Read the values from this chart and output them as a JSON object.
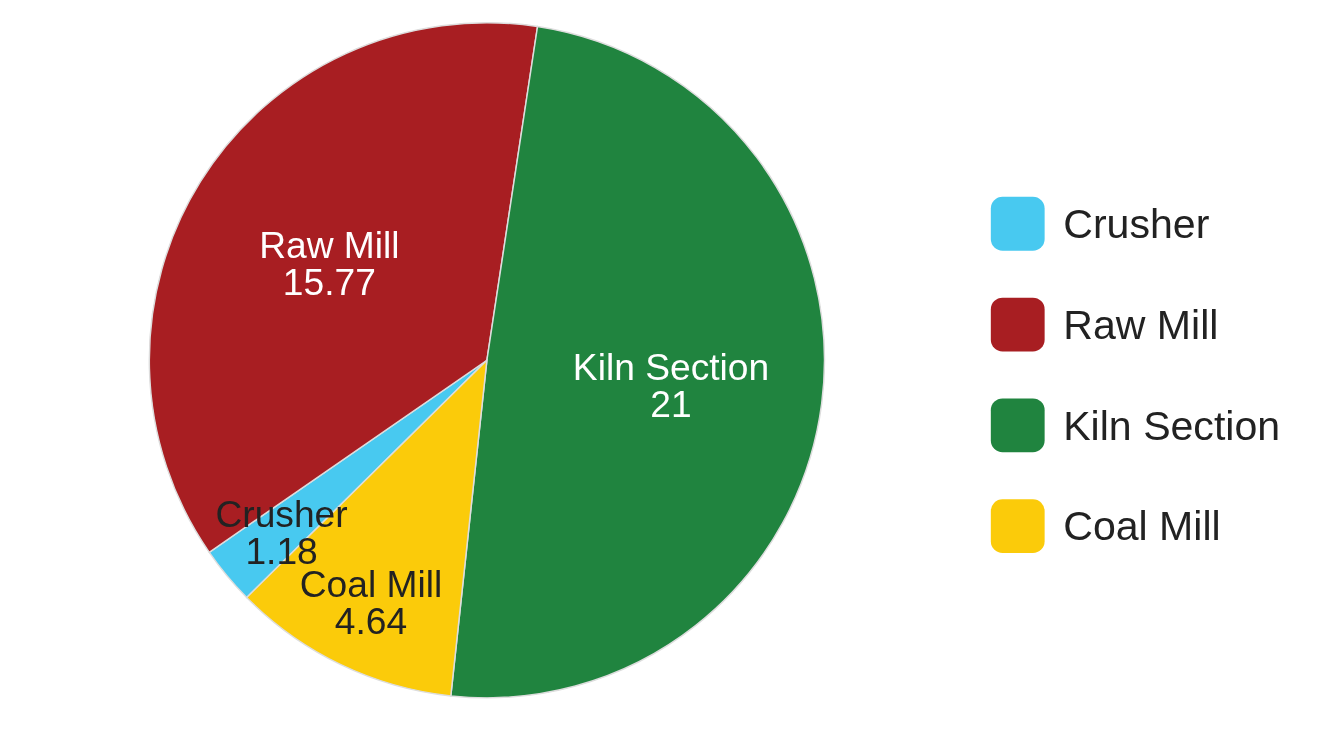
{
  "chart_data": {
    "type": "pie",
    "categories": [
      "Crusher",
      "Raw Mill",
      "Kiln Section",
      "Coal Mill"
    ],
    "values": [
      1.18,
      15.77,
      21,
      4.64
    ],
    "colors": [
      "#48c9f0",
      "#a81e22",
      "#20843f",
      "#fbcb0a"
    ],
    "data_labels": true,
    "legend": "right"
  }
}
